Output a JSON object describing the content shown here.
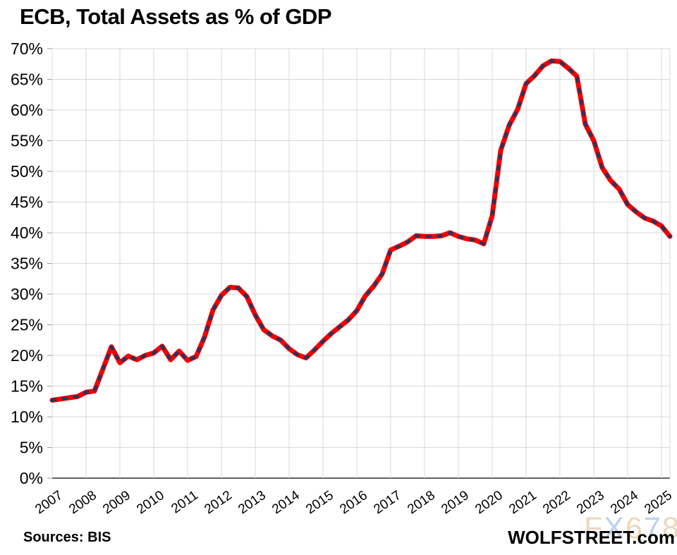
{
  "page": {
    "title": "ECB, Total Assets as % of GDP",
    "source_note": "Sources: BIS",
    "branding": "WOLFSTREET.com",
    "watermark": {
      "text": "FX678",
      "letters": [
        {
          "ch": "F",
          "color": "#ecd8ba"
        },
        {
          "ch": "X",
          "color": "#bdd2ea"
        },
        {
          "ch": "6",
          "color": "#ecd8ba"
        },
        {
          "ch": "7",
          "color": "#bdd2ea"
        },
        {
          "ch": "8",
          "color": "#ecd8ba"
        }
      ]
    }
  },
  "chart_data": {
    "type": "line",
    "title": "ECB, Total Assets as % of GDP",
    "xlabel": "",
    "ylabel": "",
    "frequency": "quarterly",
    "grid": true,
    "legend_position": "none",
    "ylim": [
      0,
      70
    ],
    "y_tick_labels": [
      "0%",
      "5%",
      "10%",
      "15%",
      "20%",
      "25%",
      "30%",
      "35%",
      "40%",
      "45%",
      "50%",
      "55%",
      "60%",
      "65%",
      "70%"
    ],
    "x_tick_labels": [
      "2007",
      "2008",
      "2009",
      "2010",
      "2011",
      "2012",
      "2013",
      "2014",
      "2015",
      "2016",
      "2017",
      "2018",
      "2019",
      "2020",
      "2021",
      "2022",
      "2023",
      "2024",
      "2025"
    ],
    "series": [
      {
        "name": "ECB total assets as % of GDP",
        "start": "2007 Q1",
        "end": "2025 Q2",
        "values": [
          12.7,
          12.9,
          13.1,
          13.3,
          14.0,
          14.2,
          17.8,
          21.4,
          18.8,
          19.9,
          19.3,
          20.0,
          20.4,
          21.5,
          19.3,
          20.7,
          19.2,
          19.8,
          23.0,
          27.4,
          29.8,
          31.1,
          31.0,
          29.6,
          26.6,
          24.2,
          23.2,
          22.5,
          21.1,
          20.1,
          19.6,
          20.9,
          22.3,
          23.6,
          24.7,
          25.8,
          27.3,
          29.7,
          31.3,
          33.3,
          37.2,
          37.8,
          38.5,
          39.5,
          39.4,
          39.4,
          39.5,
          40.0,
          39.4,
          39.0,
          38.8,
          38.2,
          42.8,
          53.4,
          57.5,
          60.1,
          64.3,
          65.6,
          67.2,
          68.0,
          67.9,
          66.8,
          65.5,
          57.7,
          55.0,
          50.6,
          48.5,
          47.1,
          44.6,
          43.4,
          42.4,
          41.9,
          41.1,
          39.4
        ]
      }
    ],
    "colors": {
      "line": "#f40000",
      "dash_overlay": "#1f3864",
      "grid": "#d8d8d8",
      "axis": "#2b2b2b",
      "tick": "#9b9b9b",
      "text": "#000000"
    }
  }
}
